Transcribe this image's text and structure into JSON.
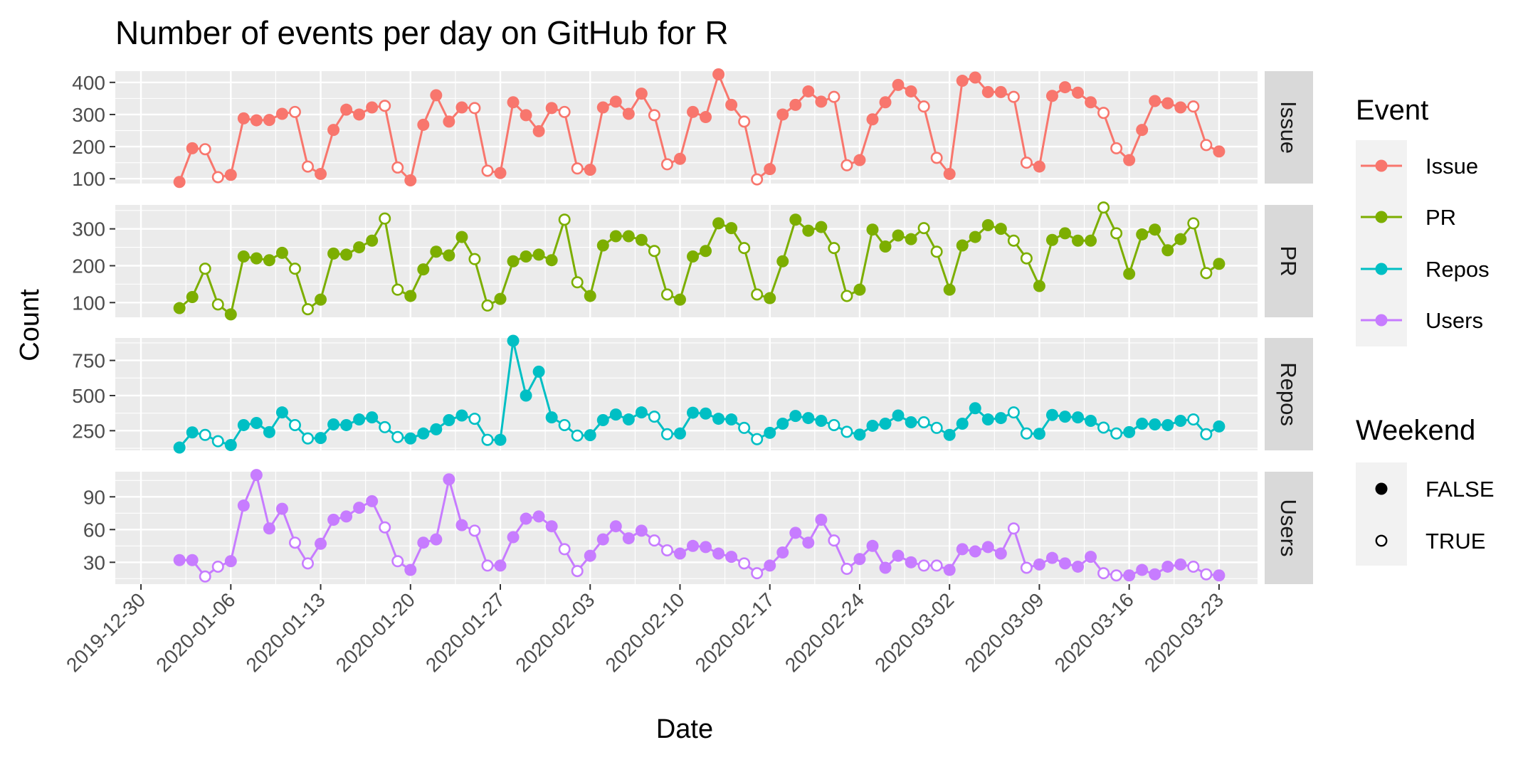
{
  "chart_data": {
    "type": "line",
    "title": "Number of events per day on GitHub for R",
    "xlabel": "Date",
    "ylabel": "Count",
    "x_start": "2020-01-02",
    "x_range": [
      "2019-12-28",
      "2020-03-26"
    ],
    "x_ticks": [
      "2019-12-30",
      "2020-01-06",
      "2020-01-13",
      "2020-01-20",
      "2020-01-27",
      "2020-02-03",
      "2020-02-10",
      "2020-02-17",
      "2020-02-24",
      "2020-03-02",
      "2020-03-09",
      "2020-03-16",
      "2020-03-23"
    ],
    "weekend_rule": "Saturday and Sunday points are drawn as open circles (Weekend = TRUE)",
    "series": [
      {
        "name": "Issue",
        "color": "#F8766D",
        "ylim": [
          85,
          435
        ],
        "yticks": [
          100,
          200,
          300,
          400
        ],
        "values": [
          90,
          195,
          192,
          105,
          112,
          288,
          282,
          283,
          302,
          308,
          138,
          115,
          252,
          315,
          300,
          322,
          327,
          135,
          95,
          268,
          360,
          278,
          322,
          320,
          125,
          118,
          338,
          298,
          248,
          320,
          308,
          132,
          128,
          322,
          340,
          302,
          365,
          298,
          145,
          162,
          308,
          292,
          425,
          330,
          278,
          98,
          130,
          300,
          330,
          372,
          340,
          355,
          142,
          158,
          285,
          338,
          392,
          372,
          325,
          165,
          115,
          405,
          415,
          370,
          370,
          355,
          150,
          138,
          358,
          385,
          368,
          338,
          305,
          195,
          158,
          252,
          342,
          335,
          322,
          325,
          205,
          185
        ]
      },
      {
        "name": "PR",
        "color": "#7CAE00",
        "ylim": [
          60,
          365
        ],
        "yticks": [
          100,
          200,
          300
        ],
        "values": [
          85,
          115,
          192,
          95,
          68,
          225,
          220,
          215,
          235,
          192,
          82,
          108,
          233,
          230,
          250,
          268,
          328,
          135,
          118,
          190,
          238,
          228,
          278,
          218,
          92,
          110,
          212,
          225,
          230,
          215,
          325,
          155,
          118,
          255,
          280,
          280,
          270,
          240,
          122,
          108,
          225,
          240,
          315,
          302,
          248,
          122,
          112,
          212,
          325,
          295,
          305,
          248,
          118,
          135,
          298,
          252,
          282,
          272,
          302,
          238,
          135,
          255,
          278,
          310,
          300,
          268,
          220,
          145,
          270,
          288,
          268,
          268,
          358,
          288,
          178,
          285,
          298,
          242,
          272,
          315,
          180,
          205
        ]
      },
      {
        "name": "Repos",
        "color": "#00BFC4",
        "ylim": [
          110,
          910
        ],
        "yticks": [
          250,
          500,
          750
        ],
        "values": [
          130,
          238,
          220,
          175,
          148,
          290,
          305,
          240,
          380,
          290,
          195,
          198,
          295,
          290,
          330,
          345,
          275,
          205,
          195,
          230,
          260,
          325,
          358,
          335,
          185,
          185,
          890,
          500,
          670,
          345,
          290,
          215,
          218,
          325,
          365,
          330,
          380,
          350,
          225,
          230,
          378,
          372,
          335,
          330,
          270,
          190,
          235,
          300,
          355,
          340,
          320,
          290,
          242,
          222,
          285,
          300,
          358,
          310,
          310,
          270,
          220,
          300,
          410,
          330,
          340,
          380,
          230,
          228,
          362,
          350,
          345,
          320,
          272,
          230,
          240,
          300,
          295,
          290,
          320,
          330,
          225,
          280
        ]
      },
      {
        "name": "Users",
        "color": "#C77CFF",
        "ylim": [
          10,
          113
        ],
        "yticks": [
          30,
          60,
          90
        ],
        "values": [
          32,
          32,
          17,
          26,
          31,
          82,
          110,
          61,
          79,
          48,
          29,
          47,
          69,
          72,
          80,
          86,
          62,
          31,
          23,
          48,
          51,
          106,
          64,
          59,
          27,
          27,
          53,
          70,
          72,
          63,
          42,
          22,
          36,
          51,
          63,
          52,
          59,
          50,
          41,
          38,
          45,
          44,
          38,
          35,
          29,
          20,
          27,
          39,
          57,
          48,
          69,
          50,
          24,
          33,
          45,
          25,
          36,
          30,
          27,
          27,
          23,
          42,
          40,
          44,
          38,
          61,
          25,
          28,
          34,
          29,
          26,
          35,
          20,
          18,
          18,
          23,
          19,
          26,
          28,
          26,
          19,
          18
        ]
      }
    ],
    "legend": {
      "event_title": "Event",
      "event_entries": [
        "Issue",
        "PR",
        "Repos",
        "Users"
      ],
      "weekend_title": "Weekend",
      "weekend_entries": [
        "FALSE",
        "TRUE"
      ],
      "position": "right"
    }
  }
}
